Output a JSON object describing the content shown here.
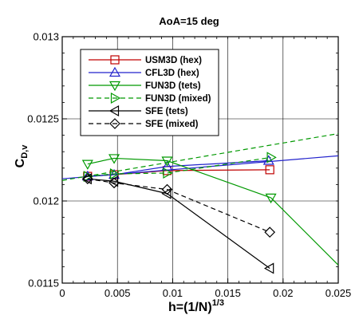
{
  "chart_data": {
    "type": "line",
    "title": "AoA=15 deg",
    "xlabel": {
      "main": "h=(1/N)",
      "sup": "1/3"
    },
    "ylabel": {
      "main": "C",
      "sub": "D,v"
    },
    "xlim": [
      0,
      0.025
    ],
    "ylim": [
      0.0115,
      0.013
    ],
    "x_ticks": [
      {
        "value": 0,
        "label": "0"
      },
      {
        "value": 0.005,
        "label": "0.005"
      },
      {
        "value": 0.01,
        "label": "0.01"
      },
      {
        "value": 0.015,
        "label": "0.015"
      },
      {
        "value": 0.02,
        "label": "0.02"
      },
      {
        "value": 0.025,
        "label": "0.025"
      }
    ],
    "y_ticks": [
      {
        "value": 0.0115,
        "label": "0.0115"
      },
      {
        "value": 0.012,
        "label": "0.012"
      },
      {
        "value": 0.0125,
        "label": "0.0125"
      },
      {
        "value": 0.013,
        "label": "0.013"
      }
    ],
    "grid": true,
    "legend_position": "top-left",
    "series": [
      {
        "name": "USM3D (hex)",
        "color": "#c00000",
        "marker": "square",
        "dash": "solid",
        "points": [
          [
            0.0023,
            0.01215
          ],
          [
            0.0047,
            0.01216
          ],
          [
            0.0095,
            0.012185
          ],
          [
            0.0188,
            0.01219
          ]
        ],
        "fit_line": null
      },
      {
        "name": "CFL3D (hex)",
        "color": "#2222cc",
        "marker": "triangle-up",
        "dash": "solid",
        "points": [
          [
            0.0023,
            0.01215
          ],
          [
            0.0047,
            0.01216
          ],
          [
            0.0095,
            0.01221
          ],
          [
            0.0187,
            0.012245
          ]
        ],
        "fit_line": [
          [
            0.0,
            0.012135
          ],
          [
            0.025,
            0.012275
          ]
        ]
      },
      {
        "name": "FUN3D (tets)",
        "color": "#009900",
        "marker": "triangle-down",
        "dash": "solid",
        "points": [
          [
            0.0023,
            0.012225
          ],
          [
            0.0047,
            0.01226
          ],
          [
            0.0095,
            0.012245
          ],
          [
            0.0189,
            0.01202
          ]
        ],
        "fit_line": [
          [
            0.0189,
            0.01202
          ],
          [
            0.025,
            0.01161
          ]
        ]
      },
      {
        "name": "FUN3D (mixed)",
        "color": "#009900",
        "marker": "triangle-right",
        "dash": "dashed",
        "points": [
          [
            0.0023,
            0.01215
          ],
          [
            0.0047,
            0.012165
          ],
          [
            0.0095,
            0.01217
          ],
          [
            0.0189,
            0.012265
          ]
        ],
        "fit_line": [
          [
            0.0,
            0.012125
          ],
          [
            0.025,
            0.01241
          ]
        ]
      },
      {
        "name": "SFE (tets)",
        "color": "#000000",
        "marker": "triangle-left",
        "dash": "solid",
        "points": [
          [
            0.0023,
            0.012135
          ],
          [
            0.0047,
            0.01212
          ],
          [
            0.0095,
            0.012045
          ],
          [
            0.0188,
            0.01159
          ]
        ],
        "fit_line": null
      },
      {
        "name": "SFE (mixed)",
        "color": "#000000",
        "marker": "diamond",
        "dash": "dashed",
        "points": [
          [
            0.0023,
            0.012135
          ],
          [
            0.0047,
            0.01211
          ],
          [
            0.0095,
            0.01207
          ],
          [
            0.0188,
            0.01181
          ]
        ],
        "fit_line": null
      }
    ]
  }
}
